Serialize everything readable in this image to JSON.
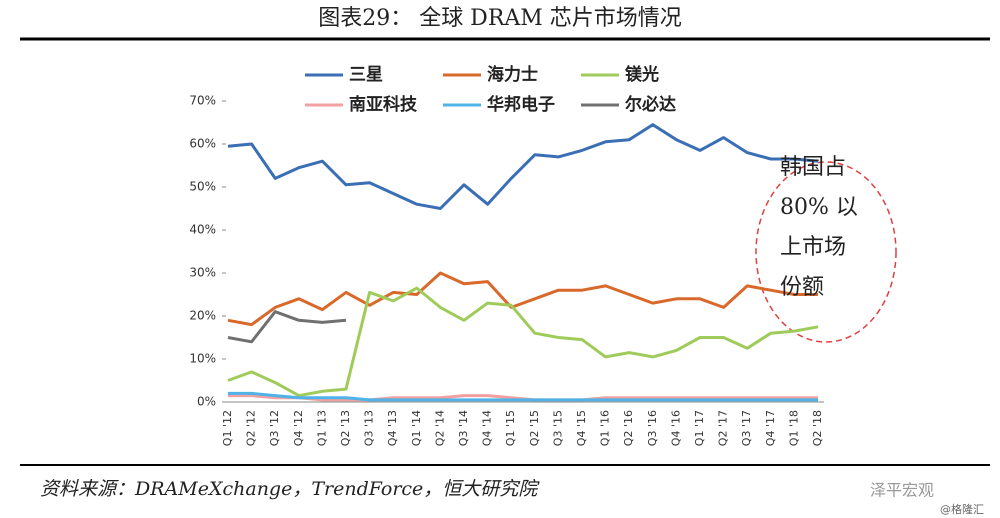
{
  "chart_data": {
    "type": "line",
    "title": "图表29： 全球 DRAM 芯片市场情况",
    "categories": [
      "Q1 '12",
      "Q2 '12",
      "Q3 '12",
      "Q4 '12",
      "Q1 '13",
      "Q2 '13",
      "Q3 '13",
      "Q4 '13",
      "Q1 '14",
      "Q2 '14",
      "Q3 '14",
      "Q4 '14",
      "Q1 '15",
      "Q2 '15",
      "Q3 '15",
      "Q4 '15",
      "Q1 '16",
      "Q2 '16",
      "Q3 '16",
      "Q4 '16",
      "Q1 '17",
      "Q2 '17",
      "Q3 '17",
      "Q4 '17",
      "Q1 '18",
      "Q2 '18"
    ],
    "series": [
      {
        "name": "三星",
        "color": "#3a6eb5",
        "values": [
          59.5,
          60,
          52,
          54.5,
          56,
          50.5,
          51,
          48.5,
          46,
          45,
          50.5,
          46,
          52,
          57.5,
          57,
          58.5,
          60.5,
          61,
          64.5,
          61,
          58.5,
          61.5,
          58,
          56.5,
          56.5,
          56
        ]
      },
      {
        "name": "海力士",
        "color": "#d9692b",
        "values": [
          19,
          18,
          22,
          24,
          21.5,
          25.5,
          22.5,
          25.5,
          25,
          30,
          27.5,
          28,
          22,
          24,
          26,
          26,
          27,
          25,
          23,
          24,
          24,
          22,
          27,
          26,
          25,
          25
        ]
      },
      {
        "name": "镁光",
        "color": "#9fcb5b",
        "values": [
          5,
          7,
          4.5,
          1.5,
          2.5,
          3,
          25.5,
          23.5,
          26.5,
          22,
          19,
          23,
          22.5,
          16,
          15,
          14.5,
          10.5,
          11.5,
          10.5,
          12,
          15,
          15,
          12.5,
          16,
          16.5,
          17.5
        ]
      },
      {
        "name": "南亚科技",
        "color": "#f2a0a0",
        "values": [
          1.5,
          1.5,
          1,
          1,
          0.5,
          0.5,
          0.5,
          1,
          1,
          1,
          1.5,
          1.5,
          1,
          0.5,
          0.5,
          0.5,
          1,
          1,
          1,
          1,
          1,
          1,
          1,
          1,
          1,
          1
        ]
      },
      {
        "name": "华邦电子",
        "color": "#4fb3e8",
        "values": [
          2,
          2,
          1.5,
          1,
          1,
          1,
          0.5,
          0.5,
          0.5,
          0.5,
          0.5,
          0.5,
          0.5,
          0.5,
          0.5,
          0.5,
          0.5,
          0.5,
          0.5,
          0.5,
          0.5,
          0.5,
          0.5,
          0.5,
          0.5,
          0.5
        ]
      },
      {
        "name": "尔必达",
        "color": "#707070",
        "values": [
          15,
          14,
          21,
          19,
          18.5,
          19,
          null,
          null,
          null,
          null,
          null,
          null,
          null,
          null,
          null,
          null,
          null,
          null,
          null,
          null,
          null,
          null,
          null,
          null,
          null,
          null
        ]
      }
    ],
    "ylim": [
      0,
      70
    ],
    "yticks": [
      {
        "value": 0,
        "label": "0%"
      },
      {
        "value": 10,
        "label": "10%"
      },
      {
        "value": 20,
        "label": "20%"
      },
      {
        "value": 30,
        "label": "30%"
      },
      {
        "value": 40,
        "label": "40%"
      },
      {
        "value": 50,
        "label": "50%"
      },
      {
        "value": 60,
        "label": "60%"
      },
      {
        "value": 70,
        "label": "70%"
      }
    ],
    "annotation": [
      "韩国占",
      "80% 以",
      "上市场",
      "份额"
    ],
    "source": "资料来源：DRAMeXchange，TrendForce，恒大研究院",
    "watermark": [
      "泽平宏观",
      "@格隆汇"
    ]
  }
}
